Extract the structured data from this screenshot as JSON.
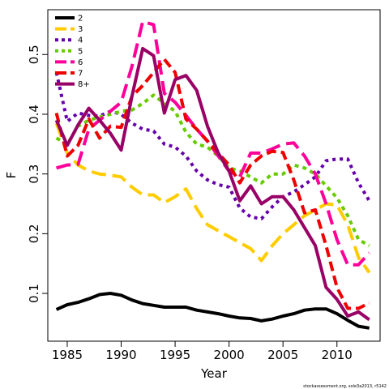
{
  "chart_data": {
    "type": "line",
    "title": "",
    "xlabel": "Year",
    "ylabel": "F",
    "xlim": [
      1983.2,
      2014
    ],
    "ylim": [
      0.02,
      0.575
    ],
    "xticks": [
      1985,
      1990,
      1995,
      2000,
      2005,
      2010
    ],
    "yticks": [
      0.1,
      0.2,
      0.3,
      0.4,
      0.5
    ],
    "grid": false,
    "legend_position": "top-left",
    "x": [
      1984,
      1985,
      1986,
      1987,
      1988,
      1989,
      1990,
      1991,
      1992,
      1993,
      1994,
      1995,
      1996,
      1997,
      1998,
      1999,
      2000,
      2001,
      2002,
      2003,
      2004,
      2005,
      2006,
      2007,
      2008,
      2009,
      2010,
      2011,
      2012,
      2013
    ],
    "series": [
      {
        "name": "2",
        "color": "#000000",
        "dash": "solid",
        "values": [
          0.073,
          0.081,
          0.085,
          0.091,
          0.098,
          0.1,
          0.097,
          0.089,
          0.083,
          0.08,
          0.077,
          0.077,
          0.077,
          0.072,
          0.069,
          0.066,
          0.062,
          0.059,
          0.058,
          0.054,
          0.057,
          0.062,
          0.066,
          0.072,
          0.074,
          0.074,
          0.066,
          0.055,
          0.045,
          0.042
        ]
      },
      {
        "name": "3",
        "color": "#FFCC00",
        "dash": "long",
        "values": [
          0.385,
          0.335,
          0.315,
          0.305,
          0.3,
          0.298,
          0.295,
          0.278,
          0.265,
          0.265,
          0.252,
          0.262,
          0.275,
          0.242,
          0.215,
          0.205,
          0.195,
          0.185,
          0.175,
          0.155,
          0.18,
          0.2,
          0.215,
          0.23,
          0.24,
          0.25,
          0.248,
          0.215,
          0.16,
          0.135
        ]
      },
      {
        "name": "4",
        "color": "#6600AA",
        "dash": "dotted",
        "values": [
          0.47,
          0.388,
          0.402,
          0.398,
          0.397,
          0.405,
          0.4,
          0.385,
          0.375,
          0.372,
          0.35,
          0.345,
          0.33,
          0.305,
          0.29,
          0.282,
          0.278,
          0.243,
          0.228,
          0.225,
          0.245,
          0.262,
          0.27,
          0.282,
          0.295,
          0.322,
          0.325,
          0.325,
          0.285,
          0.255
        ]
      },
      {
        "name": "5",
        "color": "#66CC00",
        "dash": "dotted-thick",
        "values": [
          0.36,
          0.35,
          0.38,
          0.39,
          0.395,
          0.4,
          0.405,
          0.407,
          0.418,
          0.432,
          0.418,
          0.405,
          0.37,
          0.35,
          0.345,
          0.33,
          0.31,
          0.305,
          0.295,
          0.285,
          0.3,
          0.3,
          0.315,
          0.31,
          0.3,
          0.28,
          0.26,
          0.23,
          0.19,
          0.18
        ]
      },
      {
        "name": "6",
        "color": "#FF0099",
        "dash": "long",
        "values": [
          0.31,
          0.315,
          0.316,
          0.375,
          0.39,
          0.405,
          0.42,
          0.48,
          0.555,
          0.55,
          0.435,
          0.42,
          0.398,
          0.375,
          0.355,
          0.33,
          0.305,
          0.295,
          0.335,
          0.335,
          0.342,
          0.35,
          0.352,
          0.33,
          0.3,
          0.25,
          0.19,
          0.148,
          0.148,
          0.168
        ]
      },
      {
        "name": "7",
        "color": "#EE0000",
        "dash": "medium",
        "values": [
          0.402,
          0.33,
          0.348,
          0.392,
          0.36,
          0.38,
          0.378,
          0.43,
          0.448,
          0.47,
          0.492,
          0.47,
          0.392,
          0.375,
          0.355,
          0.335,
          0.315,
          0.285,
          0.315,
          0.33,
          0.338,
          0.336,
          0.29,
          0.235,
          0.24,
          0.18,
          0.11,
          0.075,
          0.075,
          0.084
        ]
      },
      {
        "name": "8+",
        "color": "#990066",
        "dash": "solid",
        "values": [
          0.39,
          0.348,
          0.382,
          0.41,
          0.39,
          0.368,
          0.34,
          0.43,
          0.51,
          0.498,
          0.402,
          0.458,
          0.465,
          0.44,
          0.38,
          0.335,
          0.305,
          0.255,
          0.28,
          0.25,
          0.262,
          0.262,
          0.24,
          0.21,
          0.18,
          0.11,
          0.09,
          0.062,
          0.069,
          0.056
        ]
      }
    ],
    "caption": "stockassessment.org, sole3a2013, r5142"
  }
}
